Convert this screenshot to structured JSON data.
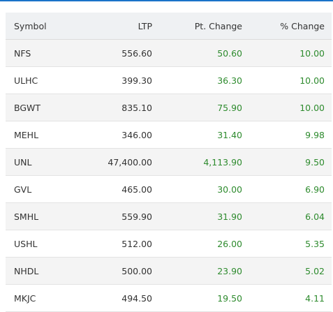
{
  "colors": {
    "accent": "#1a73c9",
    "positive": "#2e8b2e",
    "header_bg": "#eff1f3",
    "stripe_bg": "#f4f4f4"
  },
  "table": {
    "headers": {
      "symbol": "Symbol",
      "ltp": "LTP",
      "pt_change": "Pt. Change",
      "pct_change": "% Change"
    },
    "rows": [
      {
        "symbol": "NFS",
        "ltp": "556.60",
        "pt_change": "50.60",
        "pct_change": "10.00"
      },
      {
        "symbol": "ULHC",
        "ltp": "399.30",
        "pt_change": "36.30",
        "pct_change": "10.00"
      },
      {
        "symbol": "BGWT",
        "ltp": "835.10",
        "pt_change": "75.90",
        "pct_change": "10.00"
      },
      {
        "symbol": "MEHL",
        "ltp": "346.00",
        "pt_change": "31.40",
        "pct_change": "9.98"
      },
      {
        "symbol": "UNL",
        "ltp": "47,400.00",
        "pt_change": "4,113.90",
        "pct_change": "9.50"
      },
      {
        "symbol": "GVL",
        "ltp": "465.00",
        "pt_change": "30.00",
        "pct_change": "6.90"
      },
      {
        "symbol": "SMHL",
        "ltp": "559.90",
        "pt_change": "31.90",
        "pct_change": "6.04"
      },
      {
        "symbol": "USHL",
        "ltp": "512.00",
        "pt_change": "26.00",
        "pct_change": "5.35"
      },
      {
        "symbol": "NHDL",
        "ltp": "500.00",
        "pt_change": "23.90",
        "pct_change": "5.02"
      },
      {
        "symbol": "MKJC",
        "ltp": "494.50",
        "pt_change": "19.50",
        "pct_change": "4.11"
      }
    ]
  }
}
